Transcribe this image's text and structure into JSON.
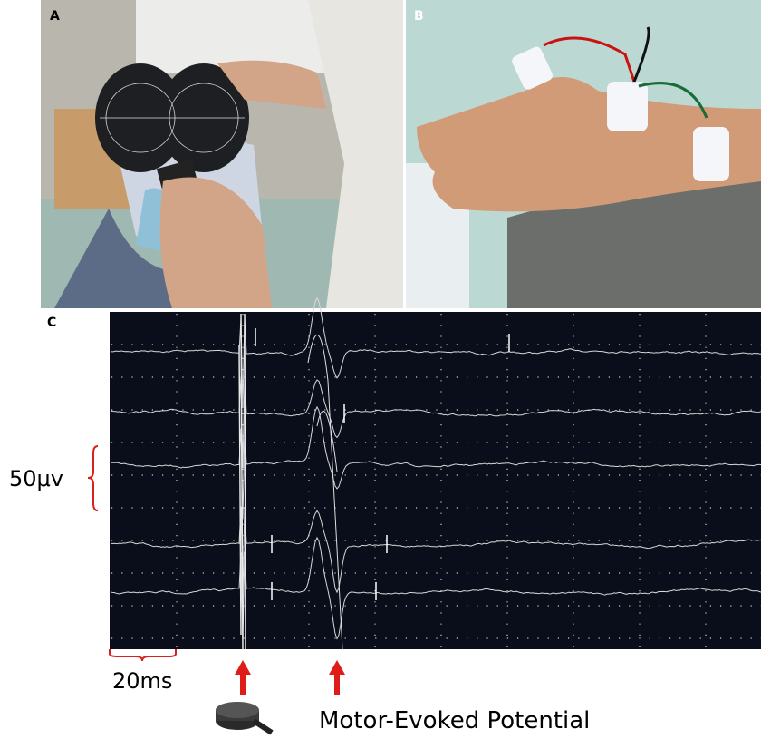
{
  "panels": [
    {
      "label": "A"
    },
    {
      "label": "B"
    },
    {
      "label": "C"
    }
  ],
  "scale_bars": {
    "amplitude": "50μv",
    "time": "20ms"
  },
  "annotation": "Motor-Evoked Potential"
}
